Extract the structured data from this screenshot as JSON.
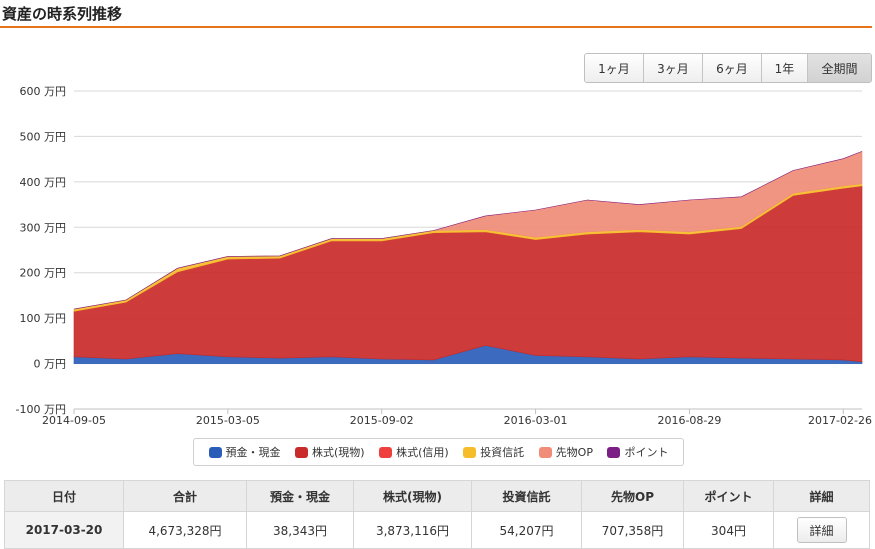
{
  "header": {
    "title": "資産の時系列推移"
  },
  "range_buttons": [
    {
      "label": "1ヶ月",
      "active": false
    },
    {
      "label": "3ヶ月",
      "active": false
    },
    {
      "label": "6ヶ月",
      "active": false
    },
    {
      "label": "1年",
      "active": false
    },
    {
      "label": "全期間",
      "active": true
    }
  ],
  "legend": [
    {
      "label": "預金・現金",
      "color": "#2a5db8"
    },
    {
      "label": "株式(現物)",
      "color": "#c92a2a"
    },
    {
      "label": "株式(信用)",
      "color": "#ef4040"
    },
    {
      "label": "投資信託",
      "color": "#f6bd2a"
    },
    {
      "label": "先物OP",
      "color": "#f08c78"
    },
    {
      "label": "ポイント",
      "color": "#7c1f84"
    }
  ],
  "chart_data": {
    "type": "area",
    "stacked": true,
    "ylim": [
      -100,
      600
    ],
    "y_ticks": [
      {
        "value": 600,
        "label": "600 万円"
      },
      {
        "value": 500,
        "label": "500 万円"
      },
      {
        "value": 400,
        "label": "400 万円"
      },
      {
        "value": 300,
        "label": "300 万円"
      },
      {
        "value": 200,
        "label": "200 万円"
      },
      {
        "value": 100,
        "label": "100 万円"
      },
      {
        "value": 0,
        "label": "0 万円"
      },
      {
        "value": -100,
        "label": "-100 万円"
      }
    ],
    "x_ticks": [
      "2014-09-05",
      "2015-03-05",
      "2015-09-02",
      "2016-03-01",
      "2016-08-29",
      "2017-02-26"
    ],
    "grid": true,
    "x": [
      "2014-09-05",
      "2014-11-05",
      "2015-01-05",
      "2015-03-05",
      "2015-05-05",
      "2015-07-05",
      "2015-09-02",
      "2015-11-02",
      "2016-01-02",
      "2016-03-01",
      "2016-05-01",
      "2016-07-01",
      "2016-08-29",
      "2016-10-29",
      "2016-12-29",
      "2017-02-26",
      "2017-03-20"
    ],
    "series": [
      {
        "name": "預金・現金",
        "values": [
          15,
          10,
          22,
          15,
          12,
          15,
          10,
          8,
          40,
          18,
          15,
          10,
          15,
          12,
          10,
          8,
          4
        ]
      },
      {
        "name": "株式(現物)",
        "values": [
          100,
          125,
          180,
          215,
          220,
          255,
          260,
          280,
          250,
          255,
          270,
          280,
          270,
          285,
          360,
          378,
          387
        ]
      },
      {
        "name": "株式(信用)",
        "values": [
          0,
          0,
          0,
          0,
          0,
          0,
          0,
          0,
          0,
          0,
          0,
          0,
          0,
          0,
          0,
          0,
          0
        ]
      },
      {
        "name": "投資信託",
        "values": [
          5,
          5,
          8,
          6,
          5,
          5,
          5,
          5,
          5,
          5,
          5,
          5,
          5,
          5,
          5,
          5,
          5
        ]
      },
      {
        "name": "先物OP",
        "values": [
          0,
          0,
          0,
          0,
          0,
          0,
          0,
          0,
          30,
          60,
          70,
          55,
          70,
          65,
          50,
          60,
          71
        ]
      },
      {
        "name": "ポイント",
        "values": [
          0,
          0,
          0,
          0,
          0,
          0,
          0,
          0,
          0,
          0,
          0,
          0,
          0,
          0,
          0,
          0,
          0
        ]
      }
    ]
  },
  "table": {
    "headers": [
      "日付",
      "合計",
      "預金・現金",
      "株式(現物)",
      "投資信託",
      "先物OP",
      "ポイント",
      "詳細"
    ],
    "row": {
      "date": "2017-03-20",
      "total": "4,673,328円",
      "cash": "38,343円",
      "stock": "3,873,116円",
      "fund": "54,207円",
      "futures": "707,358円",
      "points": "304円",
      "detail_label": "詳細"
    }
  }
}
